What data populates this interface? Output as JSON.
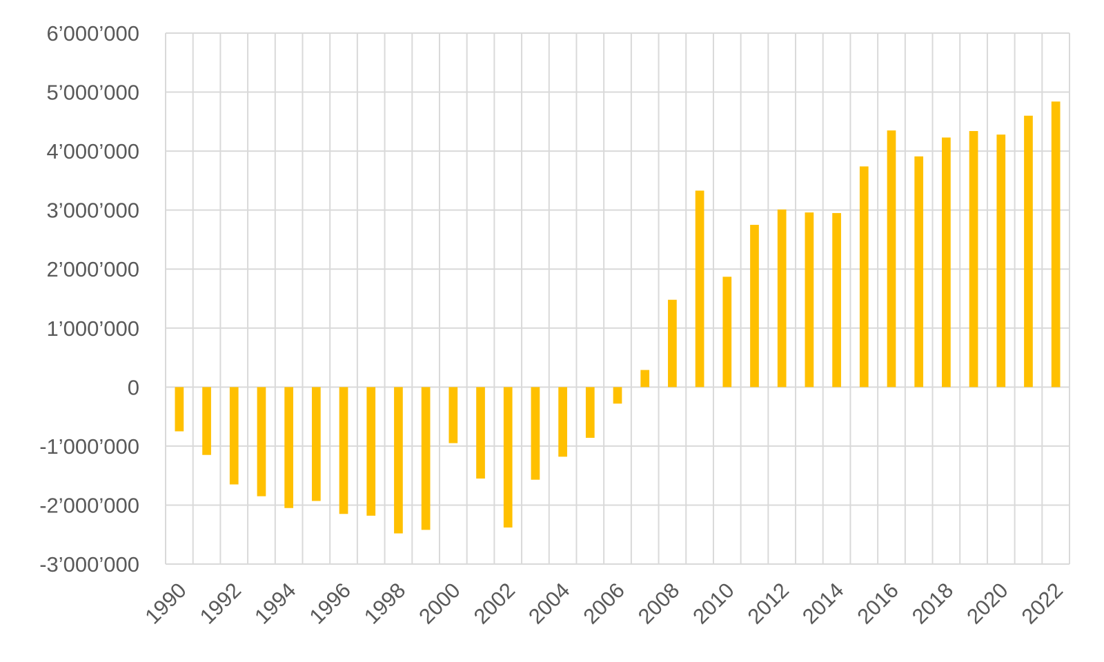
{
  "chart_data": {
    "type": "bar",
    "title": "",
    "xlabel": "",
    "ylabel": "",
    "bar_color": "#FFC000",
    "grid_color": "#D9D9D9",
    "label_color": "#595959",
    "grid": true,
    "ylim": [
      -3000000,
      6000000
    ],
    "y_ticks": [
      -3000000,
      -2000000,
      -1000000,
      0,
      1000000,
      2000000,
      3000000,
      4000000,
      5000000,
      6000000
    ],
    "y_tick_labels": [
      "-3’000’000",
      "-2’000’000",
      "-1’000’000",
      "0",
      "1’000’000",
      "2’000’000",
      "3’000’000",
      "4’000’000",
      "5’000’000",
      "6’000’000"
    ],
    "x_tick_labels": [
      "1990",
      "1992",
      "1994",
      "1996",
      "1998",
      "2000",
      "2002",
      "2004",
      "2006",
      "2008",
      "2010",
      "2012",
      "2014",
      "2016",
      "2018",
      "2020",
      "2022"
    ],
    "categories": [
      "1990",
      "1991",
      "1992",
      "1993",
      "1994",
      "1995",
      "1996",
      "1997",
      "1998",
      "1999",
      "2000",
      "2001",
      "2002",
      "2003",
      "2004",
      "2005",
      "2006",
      "2007",
      "2008",
      "2009",
      "2010",
      "2011",
      "2012",
      "2013",
      "2014",
      "2015",
      "2016",
      "2017",
      "2018",
      "2019",
      "2020",
      "2021",
      "2022"
    ],
    "values": [
      -750000,
      -1150000,
      -1650000,
      -1850000,
      -2050000,
      -1930000,
      -2150000,
      -2180000,
      -2480000,
      -2420000,
      -950000,
      -1550000,
      -2380000,
      -1570000,
      -1180000,
      -860000,
      -280000,
      290000,
      1480000,
      3330000,
      1870000,
      2750000,
      3010000,
      2960000,
      2950000,
      3740000,
      4350000,
      3910000,
      4230000,
      4340000,
      4280000,
      4600000,
      4840000
    ]
  }
}
